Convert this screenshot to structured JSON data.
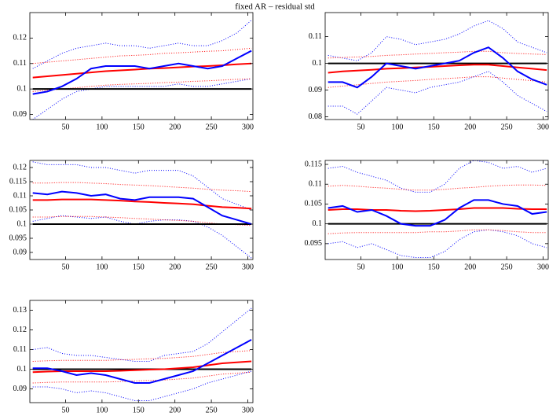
{
  "title": "fixed AR – residual std",
  "chart_data": [
    {
      "type": "line",
      "x": [
        5,
        25,
        45,
        65,
        85,
        105,
        125,
        145,
        165,
        185,
        205,
        225,
        245,
        265,
        285,
        305
      ],
      "xlim": [
        1,
        307
      ],
      "xticks": [
        50,
        100,
        150,
        200,
        250,
        300
      ],
      "ylim": [
        0.088,
        0.13
      ],
      "yticks": [
        0.09,
        0.1,
        0.11,
        0.12
      ],
      "series": [
        {
          "color": "#0000ff",
          "style": "dotted",
          "values": [
            0.108,
            0.111,
            0.114,
            0.116,
            0.117,
            0.118,
            0.117,
            0.117,
            0.116,
            0.117,
            0.118,
            0.117,
            0.117,
            0.119,
            0.122,
            0.127
          ]
        },
        {
          "color": "#0000ff",
          "style": "dotted",
          "values": [
            0.088,
            0.092,
            0.096,
            0.099,
            0.1,
            0.101,
            0.101,
            0.101,
            0.101,
            0.101,
            0.102,
            0.101,
            0.101,
            0.102,
            0.103,
            0.104
          ]
        },
        {
          "color": "#ff0000",
          "style": "dotted",
          "values": [
            0.11,
            0.1105,
            0.111,
            0.1115,
            0.112,
            0.1125,
            0.113,
            0.1132,
            0.1135,
            0.114,
            0.1142,
            0.1145,
            0.1148,
            0.115,
            0.1155,
            0.116
          ]
        },
        {
          "color": "#ff0000",
          "style": "dotted",
          "values": [
            0.099,
            0.0995,
            0.1,
            0.1005,
            0.101,
            0.1015,
            0.1018,
            0.102,
            0.1022,
            0.1025,
            0.1027,
            0.103,
            0.1032,
            0.1035,
            0.1038,
            0.104
          ]
        },
        {
          "color": "#000000",
          "style": "solid",
          "values": [
            0.1,
            0.1,
            0.1,
            0.1,
            0.1,
            0.1,
            0.1,
            0.1,
            0.1,
            0.1,
            0.1,
            0.1,
            0.1,
            0.1,
            0.1,
            0.1
          ]
        },
        {
          "color": "#ff0000",
          "style": "solid",
          "values": [
            0.1045,
            0.105,
            0.1055,
            0.106,
            0.1065,
            0.107,
            0.1073,
            0.1076,
            0.108,
            0.1082,
            0.1085,
            0.1088,
            0.109,
            0.1093,
            0.1097,
            0.11
          ]
        },
        {
          "color": "#0000ff",
          "style": "solid",
          "values": [
            0.098,
            0.099,
            0.101,
            0.104,
            0.108,
            0.109,
            0.109,
            0.109,
            0.108,
            0.109,
            0.11,
            0.109,
            0.108,
            0.109,
            0.112,
            0.115
          ]
        }
      ]
    },
    {
      "type": "line",
      "x": [
        5,
        25,
        45,
        65,
        85,
        105,
        125,
        145,
        165,
        185,
        205,
        225,
        245,
        265,
        285,
        305
      ],
      "xlim": [
        1,
        307
      ],
      "xticks": [
        50,
        100,
        150,
        200,
        250,
        300
      ],
      "ylim": [
        0.079,
        0.119
      ],
      "yticks": [
        0.08,
        0.09,
        0.1,
        0.11
      ],
      "series": [
        {
          "color": "#0000ff",
          "style": "dotted",
          "values": [
            0.103,
            0.102,
            0.101,
            0.104,
            0.11,
            0.109,
            0.107,
            0.108,
            0.109,
            0.111,
            0.114,
            0.116,
            0.113,
            0.108,
            0.106,
            0.104
          ]
        },
        {
          "color": "#0000ff",
          "style": "dotted",
          "values": [
            0.084,
            0.084,
            0.081,
            0.086,
            0.091,
            0.09,
            0.089,
            0.091,
            0.092,
            0.093,
            0.095,
            0.097,
            0.093,
            0.088,
            0.085,
            0.082
          ]
        },
        {
          "color": "#ff0000",
          "style": "dotted",
          "values": [
            0.102,
            0.1022,
            0.1024,
            0.1026,
            0.103,
            0.1032,
            0.1035,
            0.1037,
            0.104,
            0.1042,
            0.1045,
            0.1045,
            0.104,
            0.1037,
            0.1035,
            0.1033
          ]
        },
        {
          "color": "#ff0000",
          "style": "dotted",
          "values": [
            0.091,
            0.0915,
            0.092,
            0.0925,
            0.093,
            0.0933,
            0.0936,
            0.094,
            0.0943,
            0.0946,
            0.095,
            0.095,
            0.0945,
            0.094,
            0.0935,
            0.093
          ]
        },
        {
          "color": "#000000",
          "style": "solid",
          "values": [
            0.1,
            0.1,
            0.1,
            0.1,
            0.1,
            0.1,
            0.1,
            0.1,
            0.1,
            0.1,
            0.1,
            0.1,
            0.1,
            0.1,
            0.1,
            0.1
          ]
        },
        {
          "color": "#ff0000",
          "style": "solid",
          "values": [
            0.0965,
            0.097,
            0.0973,
            0.0976,
            0.098,
            0.0982,
            0.0985,
            0.0987,
            0.099,
            0.0993,
            0.0995,
            0.0995,
            0.099,
            0.0985,
            0.098,
            0.0975
          ]
        },
        {
          "color": "#0000ff",
          "style": "solid",
          "values": [
            0.093,
            0.093,
            0.091,
            0.095,
            0.1,
            0.099,
            0.098,
            0.099,
            0.1,
            0.101,
            0.104,
            0.106,
            0.102,
            0.097,
            0.094,
            0.092
          ]
        }
      ]
    },
    {
      "type": "line",
      "x": [
        5,
        25,
        45,
        65,
        85,
        105,
        125,
        145,
        165,
        185,
        205,
        225,
        245,
        265,
        285,
        305
      ],
      "xlim": [
        1,
        307
      ],
      "xticks": [
        50,
        100,
        150,
        200,
        250,
        300
      ],
      "ylim": [
        0.0875,
        0.1225
      ],
      "yticks": [
        0.09,
        0.095,
        0.1,
        0.105,
        0.11,
        0.115,
        0.12
      ],
      "series": [
        {
          "color": "#0000ff",
          "style": "dotted",
          "values": [
            0.122,
            0.121,
            0.121,
            0.121,
            0.12,
            0.12,
            0.119,
            0.118,
            0.119,
            0.119,
            0.119,
            0.117,
            0.113,
            0.109,
            0.107,
            0.105
          ]
        },
        {
          "color": "#0000ff",
          "style": "dotted",
          "values": [
            0.101,
            0.102,
            0.103,
            0.1025,
            0.102,
            0.1025,
            0.101,
            0.1,
            0.101,
            0.1015,
            0.1015,
            0.101,
            0.099,
            0.096,
            0.092,
            0.088
          ]
        },
        {
          "color": "#ff0000",
          "style": "dotted",
          "values": [
            0.1145,
            0.1145,
            0.1147,
            0.1147,
            0.1145,
            0.1143,
            0.114,
            0.1138,
            0.1136,
            0.1133,
            0.113,
            0.1127,
            0.1123,
            0.112,
            0.1118,
            0.1115
          ]
        },
        {
          "color": "#ff0000",
          "style": "dotted",
          "values": [
            0.1025,
            0.1025,
            0.1027,
            0.1027,
            0.1027,
            0.1025,
            0.1023,
            0.102,
            0.1018,
            0.1015,
            0.1013,
            0.101,
            0.1005,
            0.1,
            0.0998,
            0.0995
          ]
        },
        {
          "color": "#000000",
          "style": "solid",
          "values": [
            0.1,
            0.1,
            0.1,
            0.1,
            0.1,
            0.1,
            0.1,
            0.1,
            0.1,
            0.1,
            0.1,
            0.1,
            0.1,
            0.1,
            0.1,
            0.1
          ]
        },
        {
          "color": "#ff0000",
          "style": "solid",
          "values": [
            0.1085,
            0.1085,
            0.1087,
            0.1087,
            0.1087,
            0.1085,
            0.1083,
            0.108,
            0.1078,
            0.1075,
            0.1073,
            0.107,
            0.1065,
            0.106,
            0.1058,
            0.1055
          ]
        },
        {
          "color": "#0000ff",
          "style": "solid",
          "values": [
            0.111,
            0.1105,
            0.1115,
            0.111,
            0.11,
            0.1105,
            0.109,
            0.1085,
            0.1095,
            0.1095,
            0.1095,
            0.109,
            0.106,
            0.103,
            0.1015,
            0.1
          ]
        }
      ]
    },
    {
      "type": "line",
      "x": [
        5,
        25,
        45,
        65,
        85,
        105,
        125,
        145,
        165,
        185,
        205,
        225,
        245,
        265,
        285,
        305
      ],
      "xlim": [
        1,
        307
      ],
      "xticks": [
        50,
        100,
        150,
        200,
        250,
        300
      ],
      "ylim": [
        0.091,
        0.116
      ],
      "yticks": [
        0.095,
        0.1,
        0.105,
        0.11,
        0.115
      ],
      "series": [
        {
          "color": "#0000ff",
          "style": "dotted",
          "values": [
            0.114,
            0.1145,
            0.113,
            0.112,
            0.111,
            0.109,
            0.108,
            0.108,
            0.11,
            0.114,
            0.116,
            0.1155,
            0.114,
            0.1145,
            0.113,
            0.114
          ]
        },
        {
          "color": "#0000ff",
          "style": "dotted",
          "values": [
            0.095,
            0.0955,
            0.094,
            0.095,
            0.0935,
            0.092,
            0.0915,
            0.0915,
            0.093,
            0.096,
            0.098,
            0.0985,
            0.098,
            0.097,
            0.095,
            0.094
          ]
        },
        {
          "color": "#ff0000",
          "style": "dotted",
          "values": [
            0.1095,
            0.1097,
            0.1095,
            0.1092,
            0.109,
            0.1087,
            0.1085,
            0.1085,
            0.1087,
            0.109,
            0.1092,
            0.1095,
            0.1097,
            0.1098,
            0.1098,
            0.1097
          ]
        },
        {
          "color": "#ff0000",
          "style": "dotted",
          "values": [
            0.0975,
            0.0977,
            0.0978,
            0.0978,
            0.0978,
            0.0978,
            0.0978,
            0.098,
            0.098,
            0.0982,
            0.0985,
            0.0985,
            0.0983,
            0.098,
            0.0978,
            0.0978
          ]
        },
        {
          "color": "#000000",
          "style": "solid",
          "values": [
            0.1,
            0.1,
            0.1,
            0.1,
            0.1,
            0.1,
            0.1,
            0.1,
            0.1,
            0.1,
            0.1,
            0.1,
            0.1,
            0.1,
            0.1,
            0.1
          ]
        },
        {
          "color": "#ff0000",
          "style": "solid",
          "values": [
            0.1035,
            0.1037,
            0.1037,
            0.1035,
            0.1035,
            0.1033,
            0.1032,
            0.1033,
            0.1035,
            0.1037,
            0.104,
            0.104,
            0.104,
            0.1038,
            0.1037,
            0.1037
          ]
        },
        {
          "color": "#0000ff",
          "style": "solid",
          "values": [
            0.104,
            0.1045,
            0.103,
            0.1035,
            0.102,
            0.1,
            0.0995,
            0.0995,
            0.101,
            0.104,
            0.106,
            0.106,
            0.105,
            0.1045,
            0.1025,
            0.103
          ]
        }
      ]
    },
    {
      "type": "line",
      "x": [
        5,
        25,
        45,
        65,
        85,
        105,
        125,
        145,
        165,
        185,
        205,
        225,
        245,
        265,
        285,
        305
      ],
      "xlim": [
        1,
        307
      ],
      "xticks": [
        50,
        100,
        150,
        200,
        250,
        300
      ],
      "ylim": [
        0.083,
        0.135
      ],
      "yticks": [
        0.09,
        0.1,
        0.11,
        0.12,
        0.13
      ],
      "series": [
        {
          "color": "#0000ff",
          "style": "dotted",
          "values": [
            0.11,
            0.111,
            0.108,
            0.107,
            0.107,
            0.106,
            0.105,
            0.104,
            0.104,
            0.107,
            0.108,
            0.109,
            0.113,
            0.119,
            0.125,
            0.131
          ]
        },
        {
          "color": "#0000ff",
          "style": "dotted",
          "values": [
            0.091,
            0.091,
            0.09,
            0.088,
            0.089,
            0.088,
            0.086,
            0.084,
            0.084,
            0.086,
            0.088,
            0.09,
            0.093,
            0.095,
            0.097,
            0.099
          ]
        },
        {
          "color": "#ff0000",
          "style": "dotted",
          "values": [
            0.104,
            0.1043,
            0.1045,
            0.1045,
            0.1045,
            0.1045,
            0.1048,
            0.105,
            0.1053,
            0.1055,
            0.106,
            0.1065,
            0.1075,
            0.1085,
            0.109,
            0.1095
          ]
        },
        {
          "color": "#ff0000",
          "style": "dotted",
          "values": [
            0.093,
            0.0933,
            0.0935,
            0.0935,
            0.0935,
            0.0935,
            0.0937,
            0.094,
            0.0943,
            0.0945,
            0.095,
            0.0955,
            0.0965,
            0.0975,
            0.098,
            0.0985
          ]
        },
        {
          "color": "#000000",
          "style": "solid",
          "values": [
            0.1,
            0.1,
            0.1,
            0.1,
            0.1,
            0.1,
            0.1,
            0.1,
            0.1,
            0.1,
            0.1,
            0.1,
            0.1,
            0.1,
            0.1,
            0.1
          ]
        },
        {
          "color": "#ff0000",
          "style": "solid",
          "values": [
            0.0985,
            0.0988,
            0.099,
            0.099,
            0.099,
            0.099,
            0.0992,
            0.0995,
            0.0998,
            0.1,
            0.1005,
            0.101,
            0.102,
            0.103,
            0.1035,
            0.104
          ]
        },
        {
          "color": "#0000ff",
          "style": "solid",
          "values": [
            0.1005,
            0.1005,
            0.099,
            0.097,
            0.098,
            0.097,
            0.095,
            0.093,
            0.093,
            0.095,
            0.097,
            0.099,
            0.103,
            0.107,
            0.111,
            0.115
          ]
        }
      ]
    }
  ]
}
